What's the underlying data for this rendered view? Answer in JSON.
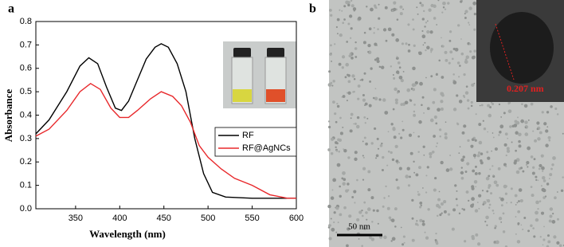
{
  "chart_data": {
    "type": "line",
    "x_label": "Wavelength (nm)",
    "y_label": "Absorbance",
    "xlim": [
      305,
      600
    ],
    "xticks": [
      350,
      400,
      450,
      500,
      550,
      600
    ],
    "ylim": [
      0,
      0.8
    ],
    "yticks": [
      {
        "value": 0,
        "label": "0.0"
      },
      0.1,
      0.2,
      0.3,
      0.4,
      0.5,
      0.6,
      0.7,
      0.8
    ],
    "legend": "right",
    "series": [
      {
        "name": "RF",
        "color": "#000000",
        "x": [
          305,
          320,
          340,
          355,
          365,
          375,
          385,
          395,
          402,
          410,
          420,
          430,
          440,
          447,
          455,
          465,
          475,
          485,
          495,
          505,
          520,
          550,
          600
        ],
        "values": [
          0.32,
          0.38,
          0.5,
          0.61,
          0.645,
          0.62,
          0.52,
          0.43,
          0.42,
          0.46,
          0.55,
          0.64,
          0.69,
          0.705,
          0.69,
          0.62,
          0.5,
          0.3,
          0.15,
          0.07,
          0.05,
          0.045,
          0.045
        ]
      },
      {
        "name": "RF@AgNCs",
        "color": "#e8282b",
        "x": [
          305,
          320,
          340,
          355,
          367,
          378,
          390,
          400,
          410,
          420,
          435,
          447,
          460,
          470,
          480,
          490,
          500,
          515,
          530,
          550,
          570,
          590,
          600
        ],
        "values": [
          0.31,
          0.34,
          0.42,
          0.5,
          0.535,
          0.51,
          0.43,
          0.39,
          0.39,
          0.42,
          0.47,
          0.5,
          0.48,
          0.44,
          0.37,
          0.27,
          0.22,
          0.17,
          0.13,
          0.1,
          0.06,
          0.045,
          0.045
        ]
      }
    ]
  },
  "panel_labels": [
    "a",
    "b"
  ],
  "image": {
    "scale_bar": "50 nm",
    "lattice_spacing": "0.207 nm"
  }
}
